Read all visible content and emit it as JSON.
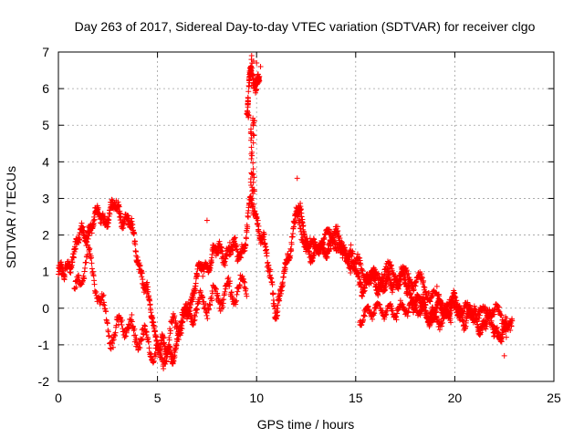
{
  "chart_data": {
    "type": "scatter",
    "title": "Day 263 of 2017, Sidereal Day-to-day VTEC variation (SDTVAR) for receiver clgo",
    "xlabel": "GPS time / hours",
    "ylabel": "SDTVAR / TECUs",
    "xlim": [
      0,
      25
    ],
    "ylim": [
      -2,
      7
    ],
    "xticks": [
      0,
      5,
      10,
      15,
      20,
      25
    ],
    "yticks": [
      -2,
      -1,
      0,
      1,
      2,
      3,
      4,
      5,
      6,
      7
    ],
    "xtick_labels": [
      "0",
      "5",
      "10",
      "15",
      "20",
      "25"
    ],
    "ytick_labels": [
      "-2",
      "-1",
      "0",
      "1",
      "2",
      "3",
      "4",
      "5",
      "6",
      "7"
    ],
    "grid": true,
    "marker": "+",
    "color": "#ff0000",
    "series": [
      {
        "name": "SDTVAR",
        "trend": {
          "x": [
            0,
            0.3,
            0.6,
            1.0,
            1.5,
            2.0,
            2.5,
            3.0,
            3.5,
            4.0,
            4.5,
            5.0,
            5.5,
            6.0,
            6.5,
            7.0,
            7.5,
            8.0,
            8.5,
            9.0,
            9.4,
            9.7,
            10.0,
            10.3,
            10.6,
            11.0,
            11.5,
            12.0,
            12.5,
            13.0,
            13.5,
            14.0,
            14.5,
            15.0,
            15.5,
            16.0,
            16.5,
            17.0,
            17.5,
            18.0,
            18.5,
            19.0,
            19.5,
            20.0,
            20.5,
            21.0,
            21.5,
            22.0,
            22.5,
            22.9
          ],
          "y": [
            1.0,
            0.8,
            1.4,
            1.8,
            2.2,
            2.5,
            2.6,
            2.7,
            2.4,
            1.5,
            0.2,
            -0.8,
            -1.3,
            -0.9,
            0.0,
            0.8,
            1.3,
            1.5,
            1.6,
            1.5,
            1.8,
            2.8,
            2.5,
            2.0,
            1.0,
            0.0,
            1.0,
            2.8,
            1.8,
            1.4,
            1.7,
            1.9,
            1.6,
            1.0,
            0.6,
            0.8,
            0.5,
            0.9,
            0.6,
            0.2,
            0.0,
            -0.1,
            0.0,
            0.1,
            -0.2,
            -0.3,
            -0.4,
            -0.5,
            -0.7,
            -0.4
          ]
        },
        "lower_branch": {
          "x": [
            0.8,
            1.5,
            2.2,
            2.8,
            3.2,
            3.8,
            4.5,
            5.2,
            5.8,
            6.5,
            7.5,
            8.5,
            9.5,
            15.2,
            16.0,
            17.0,
            18.0,
            19.0,
            19.8
          ],
          "y": [
            0.3,
            1.5,
            0.0,
            -0.9,
            -0.3,
            -0.7,
            -0.9,
            -1.5,
            -0.5,
            -0.2,
            0.2,
            0.4,
            0.6,
            -0.3,
            0.0,
            -0.1,
            0.1,
            -0.4,
            -0.2
          ]
        },
        "upper_branch": {
          "x": [
            12.0,
            12.6,
            13.2,
            13.8,
            14.4,
            15.0,
            15.8,
            16.6,
            17.4,
            18.2,
            19.0,
            19.8,
            20.6,
            21.4,
            22.0,
            22.6
          ],
          "y": [
            2.6,
            1.6,
            1.8,
            2.0,
            1.5,
            1.2,
            0.8,
            1.0,
            0.9,
            0.7,
            0.3,
            0.0,
            -0.1,
            -0.2,
            0.0,
            -0.5
          ]
        },
        "spike_cluster": {
          "x": [
            9.55,
            9.65,
            9.75,
            9.85,
            9.95,
            10.05,
            10.15
          ],
          "y": [
            5.5,
            6.4,
            6.6,
            6.2,
            6.0,
            6.3,
            6.2
          ],
          "base_x": [
            9.5,
            9.6
          ],
          "base_y": [
            5.2,
            5.4
          ]
        },
        "outliers": {
          "x": [
            9.75,
            9.85,
            10.0,
            10.2,
            7.5,
            12.05,
            22.5,
            5.3,
            0.1
          ],
          "y": [
            6.9,
            6.75,
            6.7,
            6.6,
            2.4,
            3.55,
            -1.3,
            -1.65,
            1.05
          ]
        }
      }
    ]
  }
}
